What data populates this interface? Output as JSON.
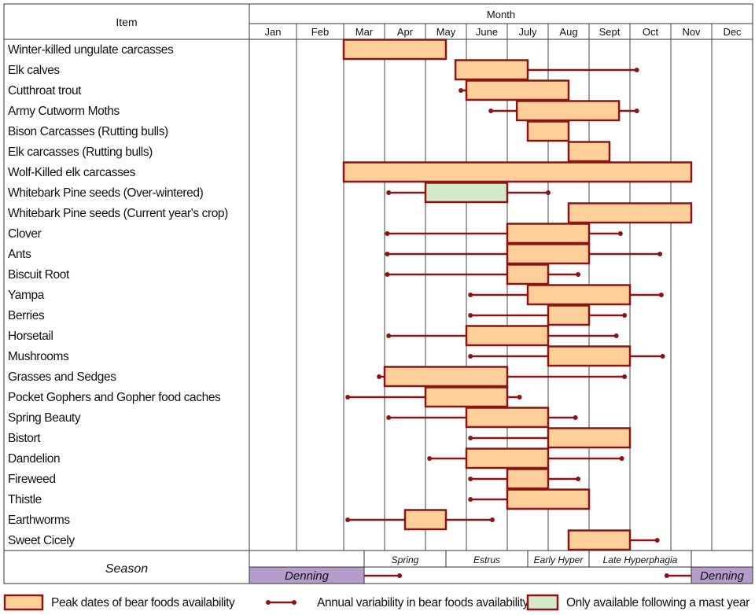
{
  "chart_data": {
    "type": "gantt",
    "header": {
      "item": "Item",
      "month": "Month"
    },
    "months": [
      "Jan",
      "Feb",
      "Mar",
      "Apr",
      "May",
      "June",
      "July",
      "Aug",
      "Sept",
      "Oct",
      "Nov",
      "Dec"
    ],
    "colors": {
      "peak_fill": "#FFCF99",
      "mast_fill": "#D3EAC8",
      "border": "#8B1414",
      "denning": "#B49CCB"
    },
    "rows": [
      {
        "item": "Winter-killed ungulate carcasses",
        "peak": [
          "Mar 1",
          "May 16"
        ],
        "variability": null,
        "mast": false
      },
      {
        "item": "Elk calves",
        "peak": [
          "May 23",
          "Jul 16"
        ],
        "variability": [
          "May 23",
          "Oct 6"
        ],
        "mast": false
      },
      {
        "item": "Cutthroat trout",
        "peak": [
          "Jun 1",
          "Aug 16"
        ],
        "variability": [
          "May 27",
          "Aug 16"
        ],
        "mast": false
      },
      {
        "item": "Army Cutworm Moths",
        "peak": [
          "Jul 8",
          "Sep 23"
        ],
        "variability": [
          "Jun 19",
          "Oct 6"
        ],
        "mast": false
      },
      {
        "item": "Bison Carcasses (Rutting bulls)",
        "peak": [
          "Jul 16",
          "Aug 16"
        ],
        "variability": null,
        "mast": false
      },
      {
        "item": "Elk carcasses (Rutting bulls)",
        "peak": [
          "Aug 16",
          "Sep 16"
        ],
        "variability": null,
        "mast": false
      },
      {
        "item": "Wolf-Killed elk carcasses",
        "peak": [
          "Mar 1",
          "Nov 16"
        ],
        "variability": null,
        "mast": false
      },
      {
        "item": "Whitebark Pine seeds (Over-wintered)",
        "peak": [
          "May 1",
          "Jul 1"
        ],
        "variability": [
          "Apr 4",
          "Jul 31"
        ],
        "mast": true
      },
      {
        "item": "Whitebark Pine seeds (Current year's crop)",
        "peak": [
          "Aug 16",
          "Nov 16"
        ],
        "variability": null,
        "mast": false
      },
      {
        "item": "Clover",
        "peak": [
          "Jul 1",
          "Sep 1"
        ],
        "variability": [
          "Apr 3",
          "Sep 24"
        ],
        "mast": false
      },
      {
        "item": "Ants",
        "peak": [
          "Jul 1",
          "Sep 1"
        ],
        "variability": [
          "Apr 3",
          "Oct 23"
        ],
        "mast": false
      },
      {
        "item": "Biscuit Root",
        "peak": [
          "Jul 1",
          "Aug 1"
        ],
        "variability": [
          "Apr 3",
          "Aug 23"
        ],
        "mast": false
      },
      {
        "item": "Yampa",
        "peak": [
          "Jul 16",
          "Oct 1"
        ],
        "variability": [
          "Jun 4",
          "Oct 24"
        ],
        "mast": false
      },
      {
        "item": "Berries",
        "peak": [
          "Aug 1",
          "Sep 1"
        ],
        "variability": [
          "Jun 4",
          "Sep 27"
        ],
        "mast": false
      },
      {
        "item": "Horsetail",
        "peak": [
          "Jun 1",
          "Aug 1"
        ],
        "variability": [
          "Apr 4",
          "Sep 21"
        ],
        "mast": false
      },
      {
        "item": "Mushrooms",
        "peak": [
          "Aug 1",
          "Oct 1"
        ],
        "variability": [
          "Jun 4",
          "Oct 25"
        ],
        "mast": false
      },
      {
        "item": "Grasses and Sedges",
        "peak": [
          "Apr 1",
          "Jul 1"
        ],
        "variability": [
          "Mar 27",
          "Sep 27"
        ],
        "mast": false
      },
      {
        "item": "Pocket Gophers and Gopher food caches",
        "peak": [
          "May 1",
          "Jul 1"
        ],
        "variability": [
          "Mar 4",
          "Jul 10"
        ],
        "mast": false
      },
      {
        "item": "Spring Beauty",
        "peak": [
          "Jun 1",
          "Aug 1"
        ],
        "variability": [
          "Apr 4",
          "Aug 21"
        ],
        "mast": false
      },
      {
        "item": "Bistort",
        "peak": [
          "Aug 1",
          "Oct 1"
        ],
        "variability": [
          "Jun 4",
          "Oct 1"
        ],
        "mast": false
      },
      {
        "item": "Dandelion",
        "peak": [
          "Jun 1",
          "Aug 1"
        ],
        "variability": [
          "May 4",
          "Sep 25"
        ],
        "mast": false
      },
      {
        "item": "Fireweed",
        "peak": [
          "Jul 1",
          "Aug 1"
        ],
        "variability": [
          "Jun 4",
          "Aug 23"
        ],
        "mast": false
      },
      {
        "item": "Thistle",
        "peak": [
          "Jul 1",
          "Sep 1"
        ],
        "variability": [
          "Jun 4",
          "Sep 1"
        ],
        "mast": false
      },
      {
        "item": "Earthworms",
        "peak": [
          "Apr 16",
          "May 16"
        ],
        "variability": [
          "Mar 4",
          "Jun 20"
        ],
        "mast": false
      },
      {
        "item": "Sweet Cicely",
        "peak": [
          "Aug 16",
          "Oct 1"
        ],
        "variability": [
          "Aug 16",
          "Oct 21"
        ],
        "mast": false
      }
    ],
    "season": {
      "label": "Season",
      "periods": [
        {
          "name": "Spring",
          "range": [
            "Mar 16",
            "May 16"
          ]
        },
        {
          "name": "Estrus",
          "range": [
            "May 16",
            "Jul 16"
          ]
        },
        {
          "name": "Early Hyper",
          "range": [
            "Jul 16",
            "Sep 1"
          ]
        },
        {
          "name": "Late Hyperphagia",
          "range": [
            "Sep 1",
            "Nov 16"
          ]
        }
      ],
      "denning": [
        {
          "name": "Denning",
          "range": [
            "Jan 1",
            "Mar 16"
          ],
          "variability": [
            "Mar 16",
            "Apr 12"
          ]
        },
        {
          "name": "Denning",
          "range": [
            "Nov 16",
            "Dec 31"
          ],
          "variability": [
            "Oct 28",
            "Nov 16"
          ]
        }
      ]
    },
    "legend": {
      "peak": "Peak dates of bear foods availability",
      "variability": "Annual variability in bear foods availability",
      "mast": "Only available following a mast year"
    }
  }
}
